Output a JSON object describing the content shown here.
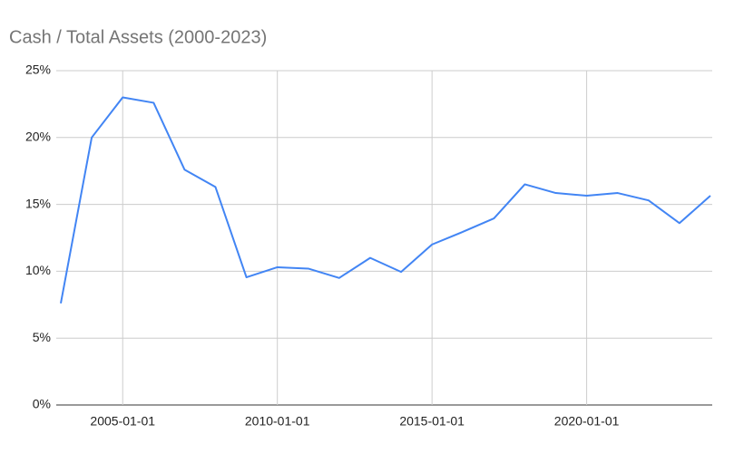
{
  "chart_data": {
    "type": "line",
    "title": "Cash / Total Assets (2000-2023)",
    "x": [
      "2003-01-01",
      "2004-01-01",
      "2005-01-01",
      "2006-01-01",
      "2007-01-01",
      "2008-01-01",
      "2009-01-01",
      "2010-01-01",
      "2011-01-01",
      "2012-01-01",
      "2013-01-01",
      "2014-01-01",
      "2015-01-01",
      "2016-01-01",
      "2017-01-01",
      "2018-01-01",
      "2019-01-01",
      "2020-01-01",
      "2021-01-01",
      "2022-01-01",
      "2023-01-01",
      "2024-01-01"
    ],
    "series": [
      {
        "name": "Cash / Total Assets",
        "color": "#4285f4",
        "values": [
          7.6,
          20.0,
          23.0,
          22.6,
          17.6,
          16.3,
          9.55,
          10.3,
          10.2,
          9.5,
          11.0,
          9.95,
          12.0,
          12.95,
          13.95,
          16.5,
          15.85,
          15.65,
          15.85,
          15.3,
          13.6,
          15.65
        ]
      }
    ],
    "xlim": [
      "2003-01-01",
      "2024-01-01"
    ],
    "xticks": [
      "2005-01-01",
      "2010-01-01",
      "2015-01-01",
      "2020-01-01"
    ],
    "ylim": [
      0,
      25
    ],
    "yticks": [
      {
        "value": 0,
        "label": "0%"
      },
      {
        "value": 5,
        "label": "5%"
      },
      {
        "value": 10,
        "label": "10%"
      },
      {
        "value": 15,
        "label": "15%"
      },
      {
        "value": 20,
        "label": "20%"
      },
      {
        "value": 25,
        "label": "25%"
      }
    ],
    "grid": true
  }
}
